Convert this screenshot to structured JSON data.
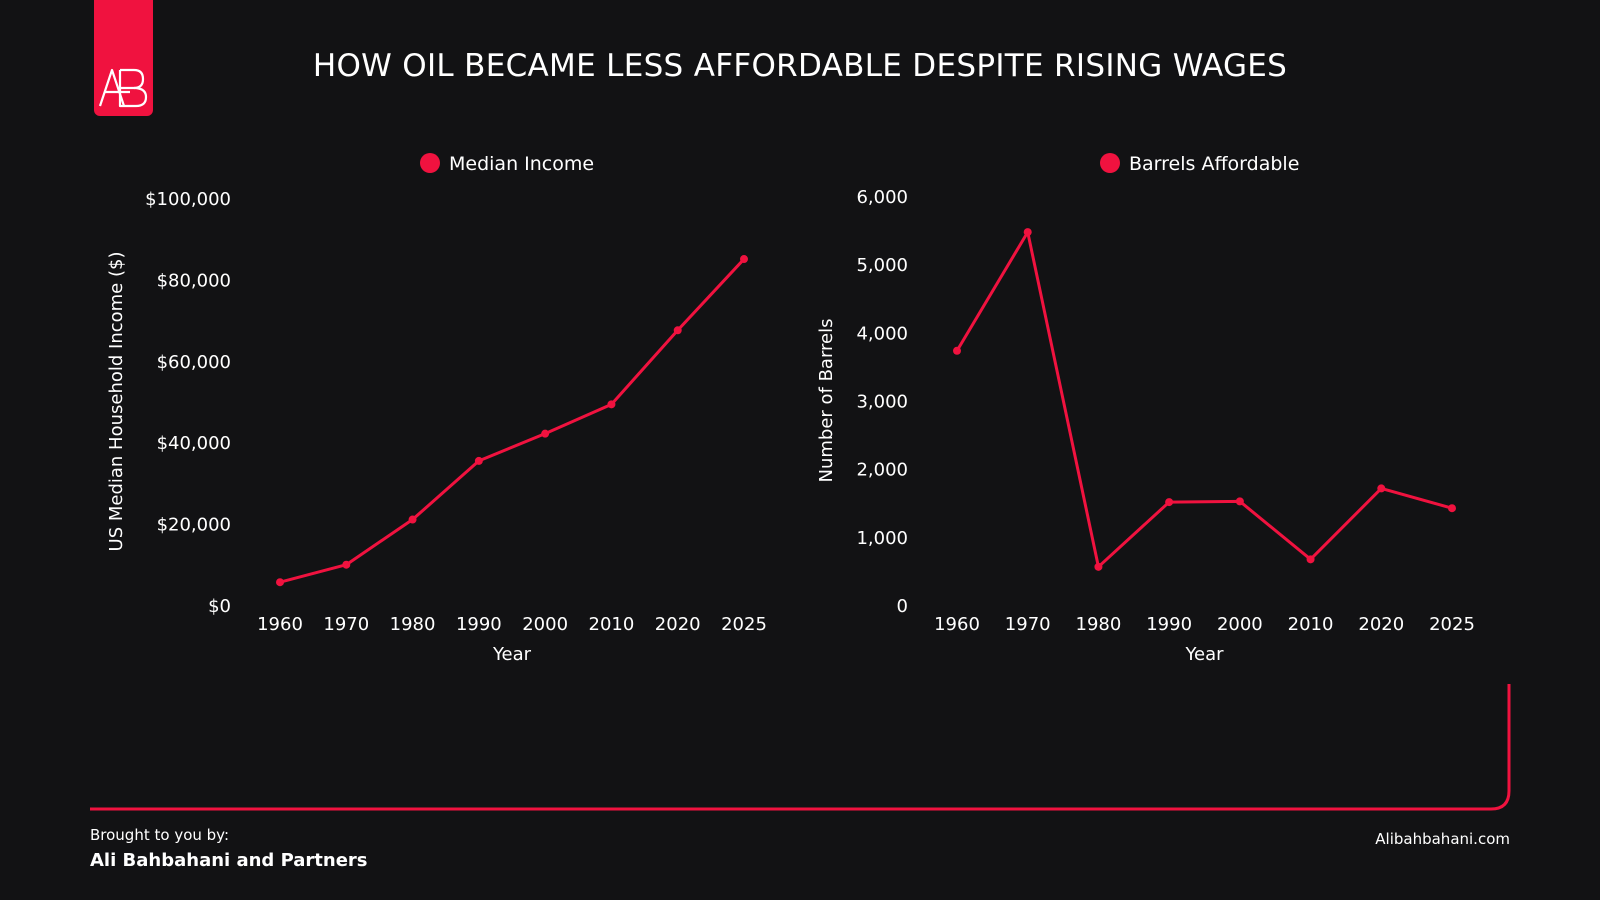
{
  "title": "HOW OIL BECAME LESS AFFORDABLE DESPITE RISING WAGES",
  "logo": {
    "text": "AB",
    "icon": "ab-logo-icon"
  },
  "colors": {
    "background": "#121214",
    "accent": "#f0123f",
    "text": "#ffffff"
  },
  "footer": {
    "label": "Brought to you by:",
    "name": "Ali Bahbahani and Partners",
    "site": "Alibahbahani.com"
  },
  "chart_data": [
    {
      "type": "line",
      "legend": "Median Income",
      "legend_position": "top-center",
      "xlabel": "Year",
      "ylabel": "US Median Household Income ($)",
      "x": [
        "1960",
        "1970",
        "1980",
        "1990",
        "2000",
        "2010",
        "2020",
        "2025"
      ],
      "values": [
        5600,
        9900,
        21000,
        35400,
        42100,
        49300,
        67500,
        85000
      ],
      "ylim": [
        0,
        100000
      ],
      "yticks": [
        0,
        20000,
        40000,
        60000,
        80000,
        100000
      ],
      "ytick_labels": [
        "$0",
        "$20,000",
        "$40,000",
        "$60,000",
        "$80,000",
        "$100,000"
      ],
      "grid": false
    },
    {
      "type": "line",
      "legend": "Barrels Affordable",
      "legend_position": "top-center",
      "xlabel": "Year",
      "ylabel": "Number of Barrels",
      "x": [
        "1960",
        "1970",
        "1980",
        "1990",
        "2000",
        "2010",
        "2020",
        "2025"
      ],
      "values": [
        3730,
        5470,
        560,
        1510,
        1520,
        670,
        1710,
        1420
      ],
      "ylim": [
        0,
        6000
      ],
      "yticks": [
        0,
        1000,
        2000,
        3000,
        4000,
        5000,
        6000
      ],
      "ytick_labels": [
        "0",
        "1,000",
        "2,000",
        "3,000",
        "4,000",
        "5,000",
        "6,000"
      ],
      "grid": false
    }
  ]
}
